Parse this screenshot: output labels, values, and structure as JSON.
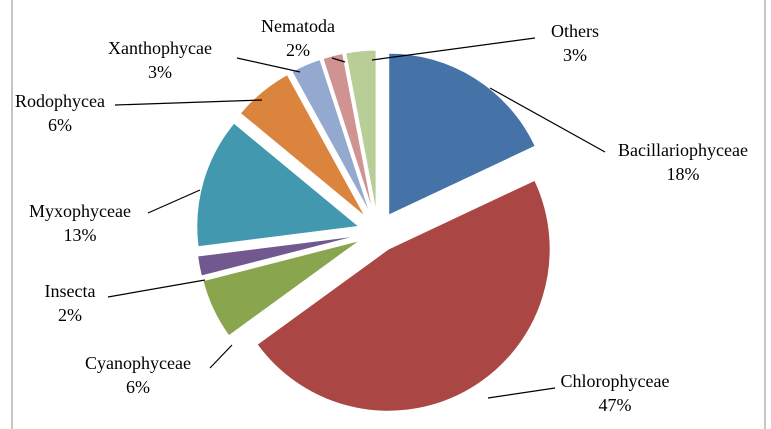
{
  "chart_data": {
    "type": "pie",
    "categories": [
      "Bacillariophyceae",
      "Chlorophyceae",
      "Cyanophyceae",
      "Insecta",
      "Myxophyceae",
      "Rodophycea",
      "Xanthophycae",
      "Nematoda",
      "Others"
    ],
    "values": [
      18,
      47,
      6,
      2,
      13,
      6,
      3,
      2,
      3
    ],
    "value_labels": [
      "18%",
      "47%",
      "6%",
      "2%",
      "13%",
      "6%",
      "3%",
      "2%",
      "3%"
    ],
    "colors": [
      "#4572a7",
      "#aa4643",
      "#89a54e",
      "#71588f",
      "#4198af",
      "#db843d",
      "#93a9cf",
      "#d19392",
      "#b9cd96"
    ]
  }
}
